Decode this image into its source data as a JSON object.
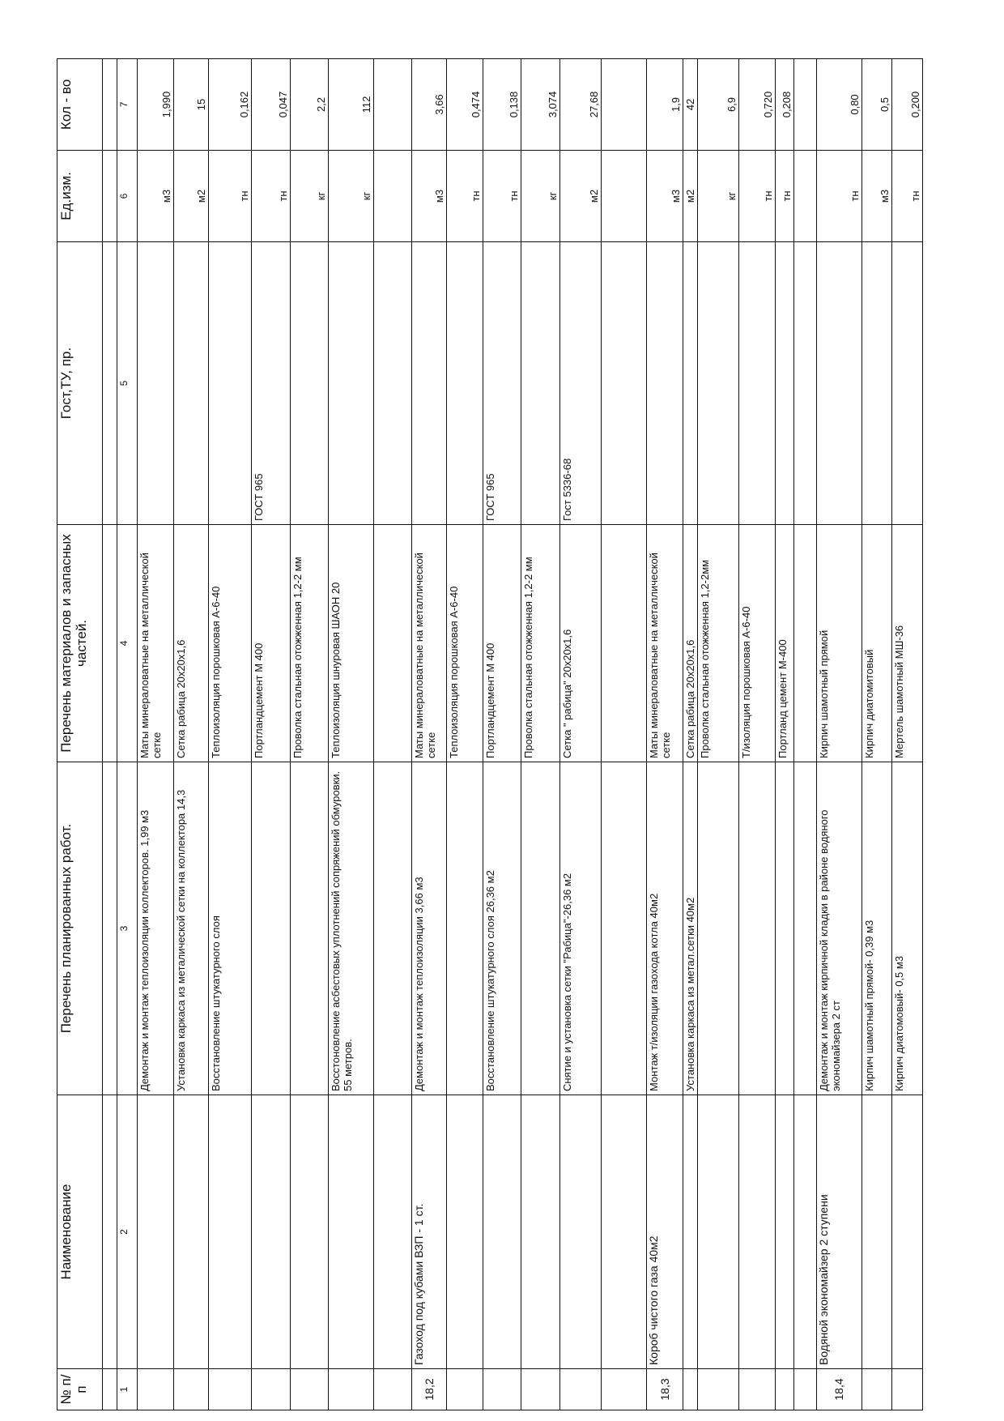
{
  "header": {
    "columns": [
      "№ п/п",
      "Наименование",
      "Перечень планированных работ.",
      "Перечень материалов и запасных частей.",
      "Гост,ТУ, пр.",
      "Ед.изм.",
      "Кол - во"
    ],
    "numbers": [
      "1",
      "2",
      "3",
      "4",
      "5",
      "6",
      "7"
    ]
  },
  "table": {
    "rows": [
      {
        "work": "Демонтаж и монтаж теплоизоляции коллекторов. 1,99 м3",
        "material": "Маты минераловатные на металлической сетке",
        "unit": "м3",
        "qty": "1,990"
      },
      {
        "work": "Установка каркаса из металической сетки на коллектора 14,3",
        "material": "Сетка рабица 20х20х1,6",
        "unit": "м2",
        "qty": "15"
      },
      {
        "work": "Восстановление штукатурного слоя",
        "material": "Теплоизоляция порошковая А-6-40",
        "unit": "тн",
        "qty": "0,162"
      },
      {
        "material": "Портландцемент М 400",
        "standard": "ГОСТ 965",
        "unit": "тн",
        "qty": "0,047"
      },
      {
        "material": "Проволка стальная отожженная 1,2-2 мм",
        "unit": "кг",
        "qty": "2,2"
      },
      {
        "work": "Восстоновление асбестовых уплотнений сопряжений обмуровки. 55 метров.",
        "material": "Теплоизоляция шнуровая ШАОН 20",
        "unit": "кг",
        "qty": "112"
      },
      {},
      {
        "no": "18,2",
        "name": "Газоход под кубами ВЗП - 1 ст.",
        "work": "Демонтаж и монтаж теплоизоляции  3,66 м3",
        "material": "Маты минераловатные на металлической сетке",
        "unit": "м3",
        "qty": "3,66"
      },
      {
        "material": "Теплоизоляция порошковая А-6-40",
        "unit": "тн",
        "qty": "0,474"
      },
      {
        "work": "Восстановление штукатурного слоя  26,36 м2",
        "material": "Портландцемент М 400",
        "standard": "ГОСТ 965",
        "unit": "тн",
        "qty": "0,138"
      },
      {
        "material": "Проволка стальная отожженная 1,2-2 мм",
        "unit": "кг",
        "qty": "3,074"
      },
      {
        "work": "Снятие и установка сетки \"Рабица\"-26,36 м2",
        "material": "Сетка \" рабица\" 20х20х1,6",
        "standard": "Гост 5336-68",
        "unit": "м2",
        "qty": "27,68"
      },
      {},
      {
        "no": "18,3",
        "name": "Короб чистого газа 40м2",
        "work": "Монтаж т/изоляции газохода котла 40м2",
        "material": "Маты минераловатные на металлической сетке",
        "unit": "м3",
        "qty": "1,9"
      },
      {
        "work": "Установка каркаса из метал.сетки 40м2",
        "material": "Сетка рабица 20х20х1,6",
        "unit": "м2",
        "qty": "42"
      },
      {
        "material": "Проволка стальная отожженная 1,2-2мм",
        "unit": "кг",
        "qty": "6,9"
      },
      {
        "material": "Т/изоляция порошковая А-6-40",
        "unit": "тн",
        "qty": "0,720"
      },
      {
        "material": "Портланд цемент М-400",
        "unit": "тн",
        "qty": "0,208"
      },
      {},
      {
        "no": "18,4",
        "name": "Водяной экономайзер 2 ступени",
        "work": "Демонтаж и монтаж кирпичной кладки в районе  водяного экономайзера 2 ст",
        "material": "Кирпич шамотный прямой",
        "unit": "тн",
        "qty": "0,80"
      },
      {
        "work": "Кирпич шамотный прямой- 0,39  м3",
        "material": "Кирпич диатомитовый",
        "unit": "м3",
        "qty": "0,5"
      },
      {
        "work": "Кирпич диатомовый- 0,5  м3",
        "material": "Мертель шамотный МШ-36",
        "unit": "тн",
        "qty": "0,200"
      }
    ]
  }
}
